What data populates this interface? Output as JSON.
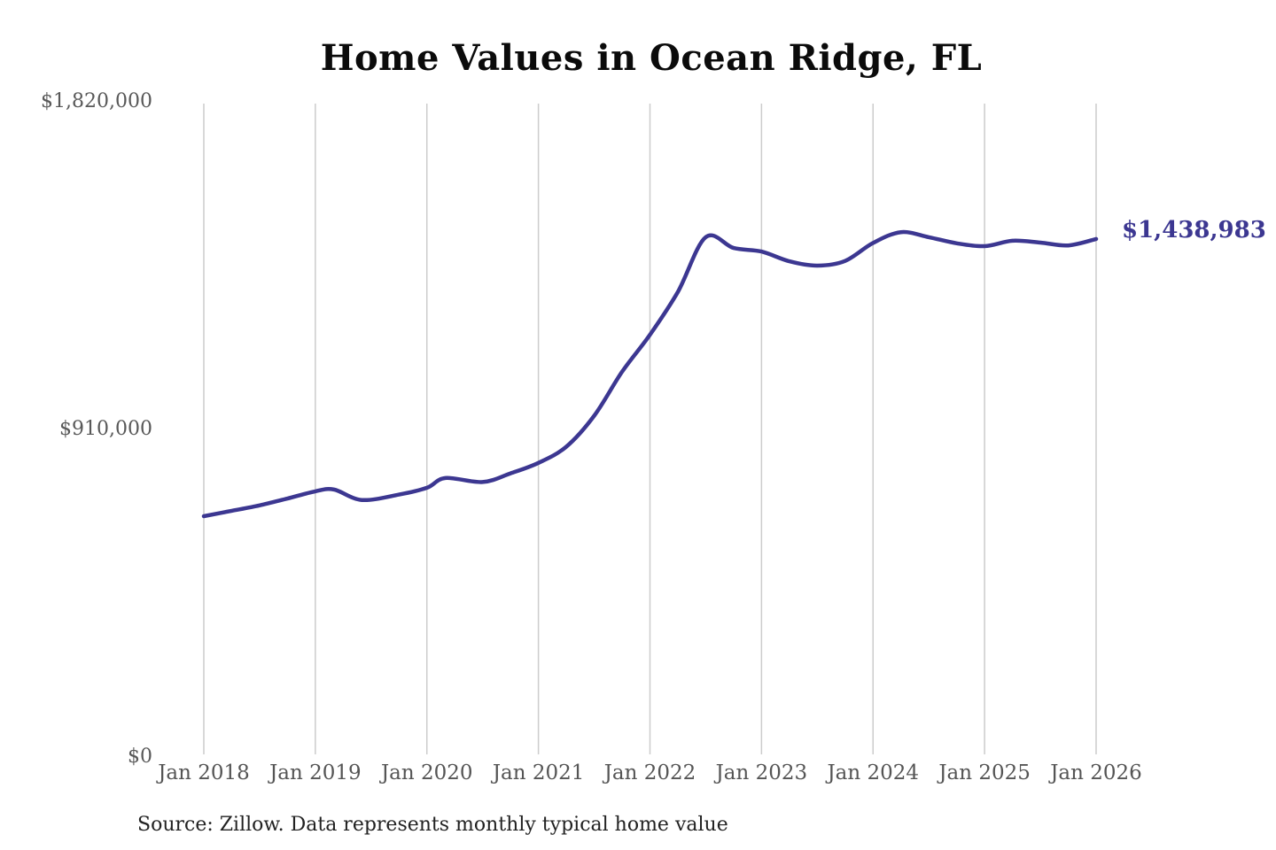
{
  "page": {
    "background_color": "#ffffff"
  },
  "chart_data": {
    "type": "line",
    "title": "Home Values in Ocean Ridge, FL",
    "xlabel": "",
    "ylabel": "",
    "ylim": [
      0,
      1820000
    ],
    "x_range_months": [
      "2018-01",
      "2026-01"
    ],
    "grid": "vertical-only",
    "legend": "none",
    "line_color": "#3c3791",
    "grid_color": "#cccccc",
    "axis_label_color": "#585858",
    "title_color": "#0b0b0b",
    "x_ticks": [
      "Jan 2018",
      "Jan 2019",
      "Jan 2020",
      "Jan 2021",
      "Jan 2022",
      "Jan 2023",
      "Jan 2024",
      "Jan 2025",
      "Jan 2026"
    ],
    "y_ticks": [
      {
        "label": "$1,820,000",
        "value": 1820000
      },
      {
        "label": "$910,000",
        "value": 910000
      },
      {
        "label": "$0",
        "value": 0
      }
    ],
    "series": [
      {
        "name": "Monthly typical home value",
        "points": [
          {
            "month": "2018-01",
            "value": 669000
          },
          {
            "month": "2018-04",
            "value": 684000
          },
          {
            "month": "2018-07",
            "value": 699000
          },
          {
            "month": "2018-10",
            "value": 718000
          },
          {
            "month": "2019-01",
            "value": 738000
          },
          {
            "month": "2019-03",
            "value": 743000
          },
          {
            "month": "2019-06",
            "value": 714000
          },
          {
            "month": "2019-10",
            "value": 729000
          },
          {
            "month": "2020-01",
            "value": 748000
          },
          {
            "month": "2020-03",
            "value": 775000
          },
          {
            "month": "2020-07",
            "value": 764000
          },
          {
            "month": "2020-10",
            "value": 788000
          },
          {
            "month": "2021-01",
            "value": 817000
          },
          {
            "month": "2021-04",
            "value": 862000
          },
          {
            "month": "2021-07",
            "value": 948000
          },
          {
            "month": "2021-10",
            "value": 1070000
          },
          {
            "month": "2022-01",
            "value": 1173000
          },
          {
            "month": "2022-04",
            "value": 1292000
          },
          {
            "month": "2022-07",
            "value": 1444000
          },
          {
            "month": "2022-10",
            "value": 1414000
          },
          {
            "month": "2023-01",
            "value": 1404000
          },
          {
            "month": "2023-04",
            "value": 1377000
          },
          {
            "month": "2023-07",
            "value": 1365000
          },
          {
            "month": "2023-10",
            "value": 1378000
          },
          {
            "month": "2024-01",
            "value": 1428000
          },
          {
            "month": "2024-04",
            "value": 1458000
          },
          {
            "month": "2024-07",
            "value": 1444000
          },
          {
            "month": "2024-10",
            "value": 1427000
          },
          {
            "month": "2025-01",
            "value": 1419000
          },
          {
            "month": "2025-04",
            "value": 1434000
          },
          {
            "month": "2025-07",
            "value": 1429000
          },
          {
            "month": "2025-10",
            "value": 1421000
          },
          {
            "month": "2026-01",
            "value": 1438983
          }
        ]
      }
    ],
    "annotation": {
      "text": "$1,438,983",
      "value": 1438983,
      "month": "2026-01",
      "color": "#3c3791"
    },
    "source_note": "Source: Zillow. Data represents monthly typical home value"
  }
}
